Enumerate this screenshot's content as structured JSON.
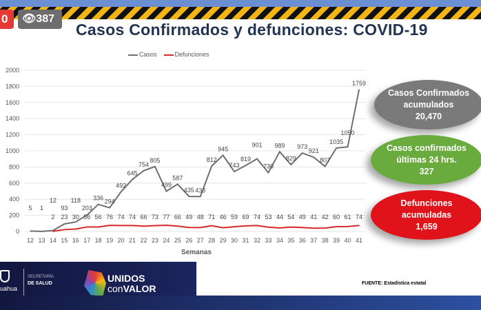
{
  "overlay": {
    "live_badge": "0",
    "views": "387",
    "eye_icon": "eye-icon"
  },
  "header": {
    "title": "Casos Confirmados y defunciones: COVID-19"
  },
  "colors": {
    "casos": "#6e6e6e",
    "defunciones": "#d62828",
    "gray_bubble": "#7a7a7a",
    "green_bubble": "#6aab3e",
    "red_bubble": "#e0131a"
  },
  "chart_data": {
    "type": "line",
    "title": "Casos Confirmados y defunciones: COVID-19",
    "xlabel": "Semanas",
    "ylabel": "",
    "ylim": [
      0,
      2000
    ],
    "yticks": [
      0,
      200,
      400,
      600,
      800,
      1000,
      1200,
      1400,
      1600,
      1800,
      2000
    ],
    "grid": true,
    "legend_position": "top-left",
    "x": [
      12,
      13,
      14,
      15,
      16,
      17,
      18,
      19,
      20,
      21,
      22,
      23,
      24,
      25,
      26,
      27,
      28,
      29,
      30,
      31,
      32,
      33,
      34,
      35,
      36,
      37,
      38,
      39,
      40,
      41
    ],
    "series": [
      {
        "name": "Casos",
        "values": [
          5,
          1,
          12,
          93,
          118,
          203,
          336,
          294,
          492,
          645,
          754,
          805,
          499,
          587,
          435,
          433,
          812,
          945,
          743,
          819,
          901,
          730,
          989,
          829,
          973,
          921,
          807,
          1035,
          1050,
          1759
        ]
      },
      {
        "name": "Defunciones",
        "values": [
          null,
          null,
          2,
          23,
          30,
          56,
          56,
          76,
          74,
          74,
          66,
          73,
          77,
          66,
          49,
          48,
          71,
          46,
          59,
          69,
          74,
          53,
          44,
          54,
          49,
          41,
          42,
          60,
          61,
          74
        ]
      }
    ]
  },
  "summary": [
    {
      "label1": "Casos Confirmados",
      "label2": "acumulados",
      "value": "20,470"
    },
    {
      "label1": "Casos confirmados",
      "label2": "últimas 24 hrs.",
      "value": "327"
    },
    {
      "label1": "Defunciones",
      "label2": "acumuladas",
      "value": "1,659"
    }
  ],
  "footer": {
    "estado": "uahua",
    "secretaria": "SECRETARÍA",
    "de_salud": "DE SALUD",
    "unidos": "UNIDOS",
    "con": "con",
    "valor": "VALOR",
    "fuente": "FUENTE: Estadística estatal"
  }
}
